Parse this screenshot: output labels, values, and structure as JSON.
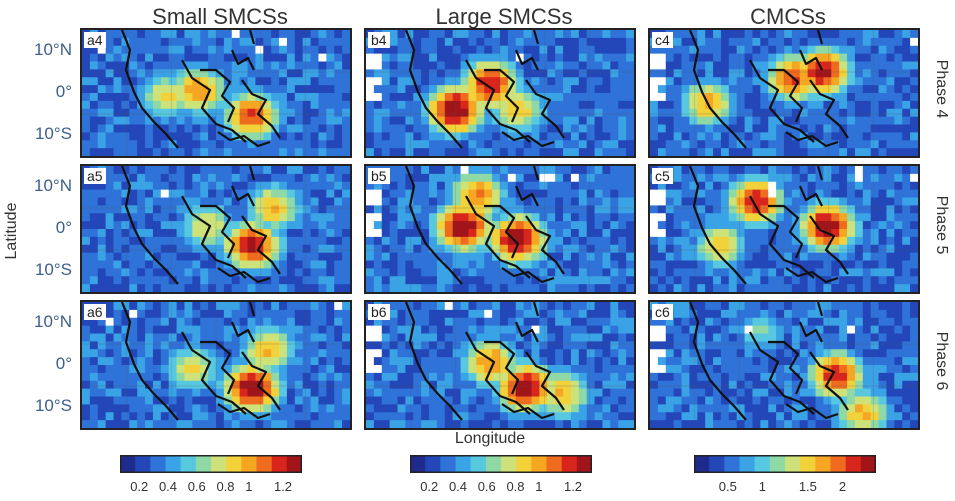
{
  "column_titles": [
    "Small SMCSs",
    "Large SMCSs",
    "CMCSs"
  ],
  "row_labels": [
    "Phase 4",
    "Phase 5",
    "Phase 6"
  ],
  "panel_labels": [
    [
      "a4",
      "b4",
      "c4"
    ],
    [
      "a5",
      "b5",
      "c5"
    ],
    [
      "a6",
      "b6",
      "c6"
    ]
  ],
  "axis": {
    "ylabel": "Latitude",
    "xlabel": "Longitude",
    "yticks": [
      "10°N",
      "0°",
      "10°S"
    ]
  },
  "colorbars": [
    {
      "ticks": [
        "0.2",
        "0.4",
        "0.6",
        "0.8",
        "1",
        "1.2"
      ]
    },
    {
      "ticks": [
        "0.2",
        "0.4",
        "0.6",
        "0.8",
        "1",
        "1.2"
      ]
    },
    {
      "ticks": [
        "0.5",
        "1",
        "1.5",
        "2"
      ]
    }
  ],
  "colors": {
    "map_palette": [
      "#1e2a8c",
      "#2347b8",
      "#2f73d8",
      "#3aa3e6",
      "#57c8e0",
      "#8fd9a6",
      "#cde37a",
      "#f2d23a",
      "#f5a623",
      "#ef6b1d",
      "#d9261c",
      "#a0141a"
    ],
    "land_outline": "#111111",
    "missing": "#ffffff",
    "tick_label": "#3d5f8a"
  },
  "chart_data": {
    "type": "heatmap",
    "layout": "3x3 panel grid (rows: phases 4–6, columns: cloud system categories)",
    "rows": [
      "Phase 4",
      "Phase 5",
      "Phase 6"
    ],
    "columns": [
      "Small SMCSs",
      "Large SMCSs",
      "CMCSs"
    ],
    "ylabel": "Latitude",
    "xlabel": "Longitude",
    "colorbar_ranges": [
      [
        0.1,
        1.3
      ],
      [
        0.1,
        1.3
      ],
      [
        0.2,
        2.1
      ]
    ],
    "colormap": "jet",
    "hotspots": [
      [
        [
          {
            "lon": 0.42,
            "lat": 0.45,
            "v": 1.0
          },
          {
            "lon": 0.62,
            "lat": 0.65,
            "v": 1.1
          },
          {
            "lon": 0.3,
            "lat": 0.5,
            "v": 0.8
          }
        ],
        [
          {
            "lon": 0.32,
            "lat": 0.6,
            "v": 1.3
          },
          {
            "lon": 0.45,
            "lat": 0.4,
            "v": 1.2
          },
          {
            "lon": 0.55,
            "lat": 0.6,
            "v": 0.9
          }
        ],
        [
          {
            "lon": 0.52,
            "lat": 0.35,
            "v": 1.8
          },
          {
            "lon": 0.63,
            "lat": 0.3,
            "v": 2.0
          },
          {
            "lon": 0.2,
            "lat": 0.55,
            "v": 1.5
          }
        ]
      ],
      [
        [
          {
            "lon": 0.62,
            "lat": 0.6,
            "v": 1.2
          },
          {
            "lon": 0.7,
            "lat": 0.3,
            "v": 0.9
          },
          {
            "lon": 0.45,
            "lat": 0.45,
            "v": 0.8
          }
        ],
        [
          {
            "lon": 0.35,
            "lat": 0.45,
            "v": 1.3
          },
          {
            "lon": 0.55,
            "lat": 0.55,
            "v": 1.3
          },
          {
            "lon": 0.4,
            "lat": 0.2,
            "v": 1.0
          }
        ],
        [
          {
            "lon": 0.65,
            "lat": 0.45,
            "v": 2.1
          },
          {
            "lon": 0.38,
            "lat": 0.25,
            "v": 1.9
          },
          {
            "lon": 0.25,
            "lat": 0.6,
            "v": 1.4
          }
        ]
      ],
      [
        [
          {
            "lon": 0.62,
            "lat": 0.65,
            "v": 1.3
          },
          {
            "lon": 0.68,
            "lat": 0.35,
            "v": 0.9
          },
          {
            "lon": 0.4,
            "lat": 0.5,
            "v": 0.8
          }
        ],
        [
          {
            "lon": 0.58,
            "lat": 0.65,
            "v": 1.3
          },
          {
            "lon": 0.45,
            "lat": 0.45,
            "v": 1.0
          },
          {
            "lon": 0.72,
            "lat": 0.7,
            "v": 0.9
          }
        ],
        [
          {
            "lon": 0.68,
            "lat": 0.55,
            "v": 1.9
          },
          {
            "lon": 0.78,
            "lat": 0.85,
            "v": 1.5
          },
          {
            "lon": 0.4,
            "lat": 0.2,
            "v": 1.0
          }
        ]
      ]
    ]
  }
}
